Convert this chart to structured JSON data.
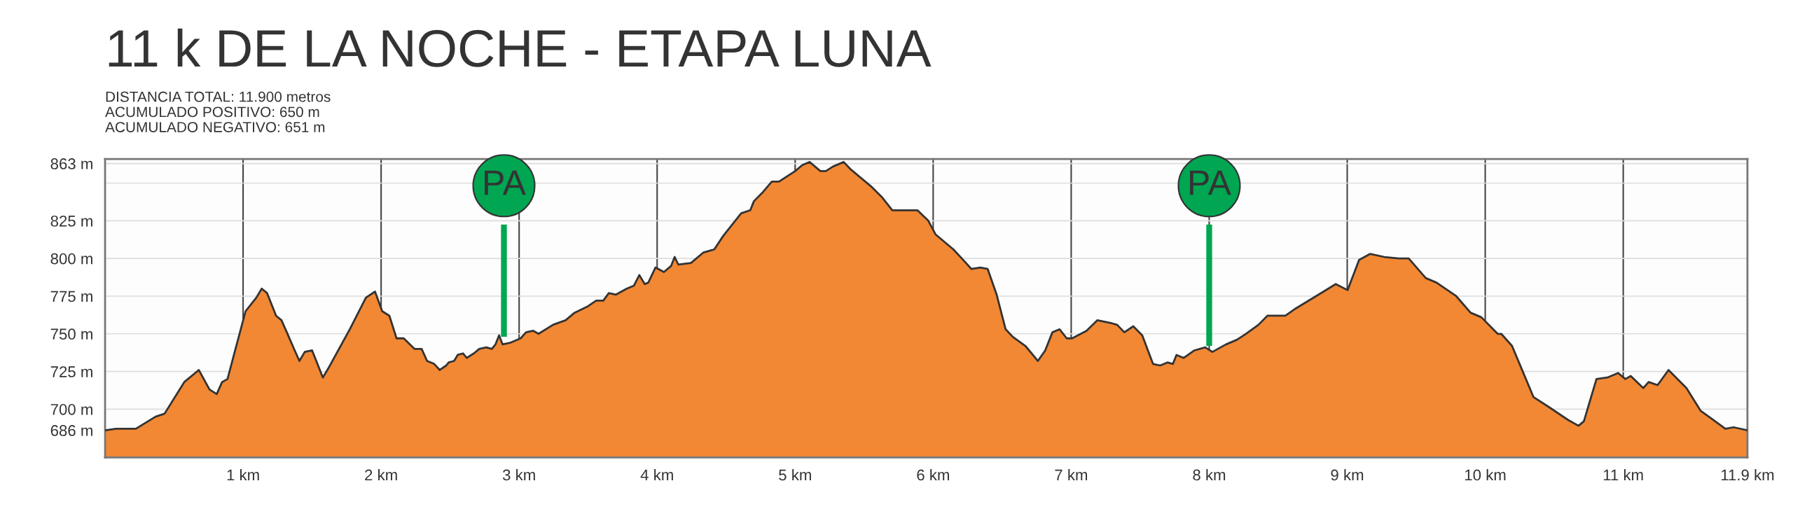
{
  "chart_data": {
    "type": "area",
    "title": "11 k DE LA NOCHE - ETAPA LUNA",
    "subtitle": "DISTANCIA TOTAL: 11.900 metros\nACUMULADO POSITIVO: 650 m\nACUMULADO NEGATIVO: 651 m",
    "x": [
      0,
      0.079,
      0.223,
      0.366,
      0.431,
      0.574,
      0.679,
      0.757,
      0.809,
      0.848,
      0.887,
      1.018,
      1.096,
      1.135,
      1.174,
      1.239,
      1.278,
      1.317,
      1.369,
      1.408,
      1.447,
      1.5,
      1.578,
      1.617,
      1.773,
      1.89,
      1.956,
      2.008,
      2.06,
      2.112,
      2.164,
      2.242,
      2.294,
      2.333,
      2.385,
      2.425,
      2.472,
      2.49,
      2.529,
      2.555,
      2.594,
      2.62,
      2.672,
      2.711,
      2.763,
      2.802,
      2.829,
      2.855,
      2.88,
      2.933,
      3.011,
      3.05,
      3.102,
      3.141,
      3.246,
      3.337,
      3.402,
      3.493,
      3.558,
      3.61,
      3.65,
      3.702,
      3.78,
      3.832,
      3.871,
      3.91,
      3.936,
      3.988,
      4.049,
      4.101,
      4.127,
      4.153,
      4.245,
      4.336,
      4.414,
      4.479,
      4.609,
      4.675,
      4.701,
      4.766,
      4.831,
      4.883,
      5.0,
      5.052,
      5.105,
      5.183,
      5.222,
      5.274,
      5.352,
      5.404,
      5.548,
      5.626,
      5.704,
      5.886,
      5.965,
      6.017,
      6.147,
      6.238,
      6.277,
      6.342,
      6.395,
      6.46,
      6.525,
      6.577,
      6.668,
      6.759,
      6.812,
      6.864,
      6.916,
      6.968,
      7.007,
      7.111,
      7.189,
      7.294,
      7.333,
      7.385,
      7.45,
      7.515,
      7.593,
      7.645,
      7.697,
      7.737,
      7.763,
      7.815,
      7.893,
      7.971,
      8.023,
      8.122,
      8.2,
      8.266,
      8.357,
      8.422,
      8.552,
      8.63,
      8.774,
      8.917,
      9.003,
      9.086,
      9.165,
      9.269,
      9.373,
      9.446,
      9.569,
      9.647,
      9.79,
      9.894,
      9.972,
      10.09,
      10.116,
      10.194,
      10.272,
      10.35,
      10.468,
      10.598,
      10.676,
      10.715,
      10.806,
      10.885,
      10.963,
      11.015,
      11.054,
      11.145,
      11.184,
      11.249,
      11.328,
      11.458,
      11.56,
      11.62,
      11.74,
      11.8,
      11.9
    ],
    "series": [
      {
        "color": "#f28834",
        "values": [
          686,
          687,
          687,
          695,
          697,
          718,
          726,
          713,
          710,
          718,
          720,
          765,
          774,
          780,
          777,
          762,
          759,
          751,
          740,
          732,
          738,
          739,
          721,
          727,
          753,
          774,
          778,
          765,
          762,
          747,
          747,
          740,
          740,
          732,
          730,
          726,
          729,
          731,
          732,
          736,
          737,
          734,
          737,
          740,
          741,
          740,
          743,
          749,
          743,
          744,
          747,
          751,
          752,
          750,
          756,
          759,
          764,
          768,
          772,
          772,
          777,
          776,
          780,
          782,
          789,
          783,
          784,
          794,
          791,
          795,
          801,
          796,
          797,
          804,
          806,
          815,
          830,
          832,
          838,
          844,
          851,
          851,
          858,
          862,
          864,
          858,
          858,
          861,
          864,
          859,
          848,
          841,
          832,
          832,
          825,
          816,
          806,
          797,
          793,
          794,
          793,
          776,
          753,
          748,
          742,
          732,
          739,
          751,
          753,
          747,
          747,
          752,
          759,
          757,
          756,
          751,
          755,
          749,
          730,
          729,
          731,
          730,
          736,
          734,
          739,
          741,
          738,
          743,
          746,
          750,
          756,
          762,
          762,
          767,
          775,
          783,
          779,
          799,
          803,
          801,
          800,
          800,
          787,
          784,
          775,
          764,
          761,
          750,
          750,
          742,
          725,
          708,
          701,
          693,
          689,
          692,
          720,
          721,
          724,
          720,
          722,
          714,
          718,
          716,
          726,
          714,
          699,
          695,
          687,
          688,
          686
        ]
      }
    ],
    "xlim": [
      0,
      11.9
    ],
    "xticks": [
      {
        "value": 1,
        "label": "1 km"
      },
      {
        "value": 2,
        "label": "2 km"
      },
      {
        "value": 3,
        "label": "3 km"
      },
      {
        "value": 4,
        "label": "4 km"
      },
      {
        "value": 5,
        "label": "5 km"
      },
      {
        "value": 6,
        "label": "6 km"
      },
      {
        "value": 7,
        "label": "7 km"
      },
      {
        "value": 8,
        "label": "8 km"
      },
      {
        "value": 9,
        "label": "9 km"
      },
      {
        "value": 10,
        "label": "10 km"
      },
      {
        "value": 11,
        "label": "11 km"
      },
      {
        "value": 11.9,
        "label": "11.9 km"
      }
    ],
    "ylim": [
      668,
      866
    ],
    "yticks": [
      {
        "value": 686,
        "label": "686 m"
      },
      {
        "value": 700,
        "label": "700 m"
      },
      {
        "value": 725,
        "label": "725 m"
      },
      {
        "value": 750,
        "label": "750 m"
      },
      {
        "value": 775,
        "label": "775 m"
      },
      {
        "value": 800,
        "label": "800 m"
      },
      {
        "value": 825,
        "label": "825 m"
      },
      {
        "value": 850,
        "label": null
      },
      {
        "value": 863,
        "label": "863 m"
      }
    ],
    "grid": true,
    "annotations": [
      {
        "text": "PA",
        "x": 2.89,
        "y": 748
      },
      {
        "text": "PA",
        "x": 8.0,
        "y": 742
      }
    ]
  }
}
